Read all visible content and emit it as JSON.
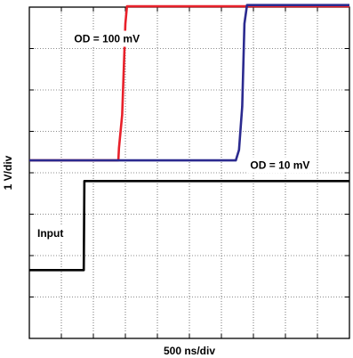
{
  "chart_data": {
    "type": "line",
    "title": "",
    "xlabel": "500 ns/div",
    "ylabel": "1 V/div",
    "xdiv": 10,
    "ydiv": 8,
    "xlim": [
      0,
      10
    ],
    "ylim": [
      0,
      8
    ],
    "grid": true,
    "annotations": [
      {
        "text": "OD = 100 mV",
        "x": 1.4,
        "y": 7.15
      },
      {
        "text": "OD = 10 mV",
        "x": 6.9,
        "y": 4.1
      },
      {
        "text": "Input",
        "x": 0.25,
        "y": 2.45
      }
    ],
    "series": [
      {
        "color": "#e8202a",
        "x": [
          0,
          2.78,
          2.8,
          2.9,
          3.0,
          3.05,
          10
        ],
        "y": [
          4.3,
          4.3,
          4.6,
          5.4,
          7.6,
          8.02,
          8.02
        ]
      },
      {
        "color": "#2b2a8f",
        "x": [
          0,
          6.45,
          6.55,
          6.65,
          6.72,
          6.8,
          10
        ],
        "y": [
          4.3,
          4.3,
          4.55,
          5.6,
          7.6,
          8.05,
          8.05
        ]
      },
      {
        "name": "Input",
        "color": "#000000",
        "x": [
          0,
          1.7,
          1.72,
          10
        ],
        "y": [
          1.65,
          1.65,
          3.8,
          3.8
        ]
      }
    ]
  }
}
